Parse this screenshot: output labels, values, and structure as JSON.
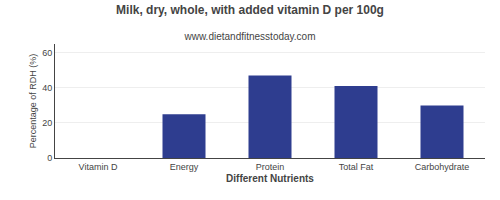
{
  "chart_data": {
    "type": "bar",
    "title": "Milk, dry, whole, with added vitamin D per 100g",
    "subtitle": "www.dietandfitnesstoday.com",
    "categories": [
      "Vitamin D",
      "Energy",
      "Protein",
      "Total Fat",
      "Carbohydrate"
    ],
    "values": [
      0,
      25,
      47,
      41,
      30
    ],
    "color": "#2e3d8f",
    "xlabel": "Different Nutrients",
    "ylabel": "Percentage of RDH (%)",
    "ylim": [
      0,
      65
    ],
    "yticks": [
      0,
      20,
      40,
      60
    ],
    "grid": true
  }
}
